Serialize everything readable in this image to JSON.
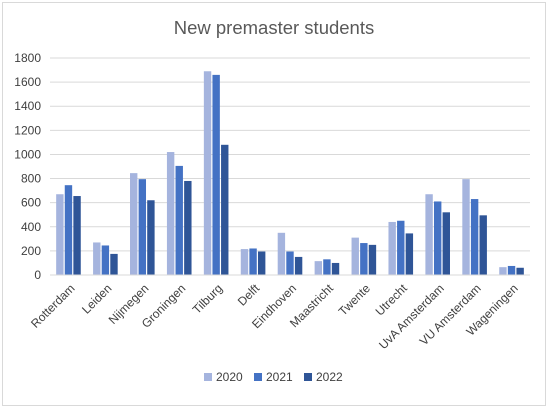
{
  "chart_data": {
    "type": "bar",
    "title": "New premaster students",
    "xlabel": "",
    "ylabel": "",
    "ylim": [
      0,
      1800
    ],
    "yticks": [
      0,
      200,
      400,
      600,
      800,
      1000,
      1200,
      1400,
      1600,
      1800
    ],
    "grid": true,
    "legend_position": "bottom",
    "categories": [
      "Rotterdam",
      "Leiden",
      "Nijmegen",
      "Groningen",
      "Tilburg",
      "Delft",
      "Eindhoven",
      "Maastricht",
      "Twente",
      "Utrecht",
      "UvA Amsterdam",
      "VU Amsterdam",
      "Wageningen"
    ],
    "series": [
      {
        "name": "2020",
        "color": "#a5b4de",
        "values": [
          670,
          270,
          845,
          1020,
          1690,
          215,
          350,
          115,
          310,
          440,
          670,
          795,
          65
        ]
      },
      {
        "name": "2021",
        "color": "#4472c4",
        "values": [
          745,
          245,
          795,
          905,
          1660,
          220,
          195,
          130,
          265,
          450,
          610,
          630,
          75
        ]
      },
      {
        "name": "2022",
        "color": "#2f5597",
        "values": [
          655,
          175,
          620,
          780,
          1080,
          195,
          150,
          100,
          250,
          345,
          520,
          495,
          60
        ]
      }
    ]
  }
}
